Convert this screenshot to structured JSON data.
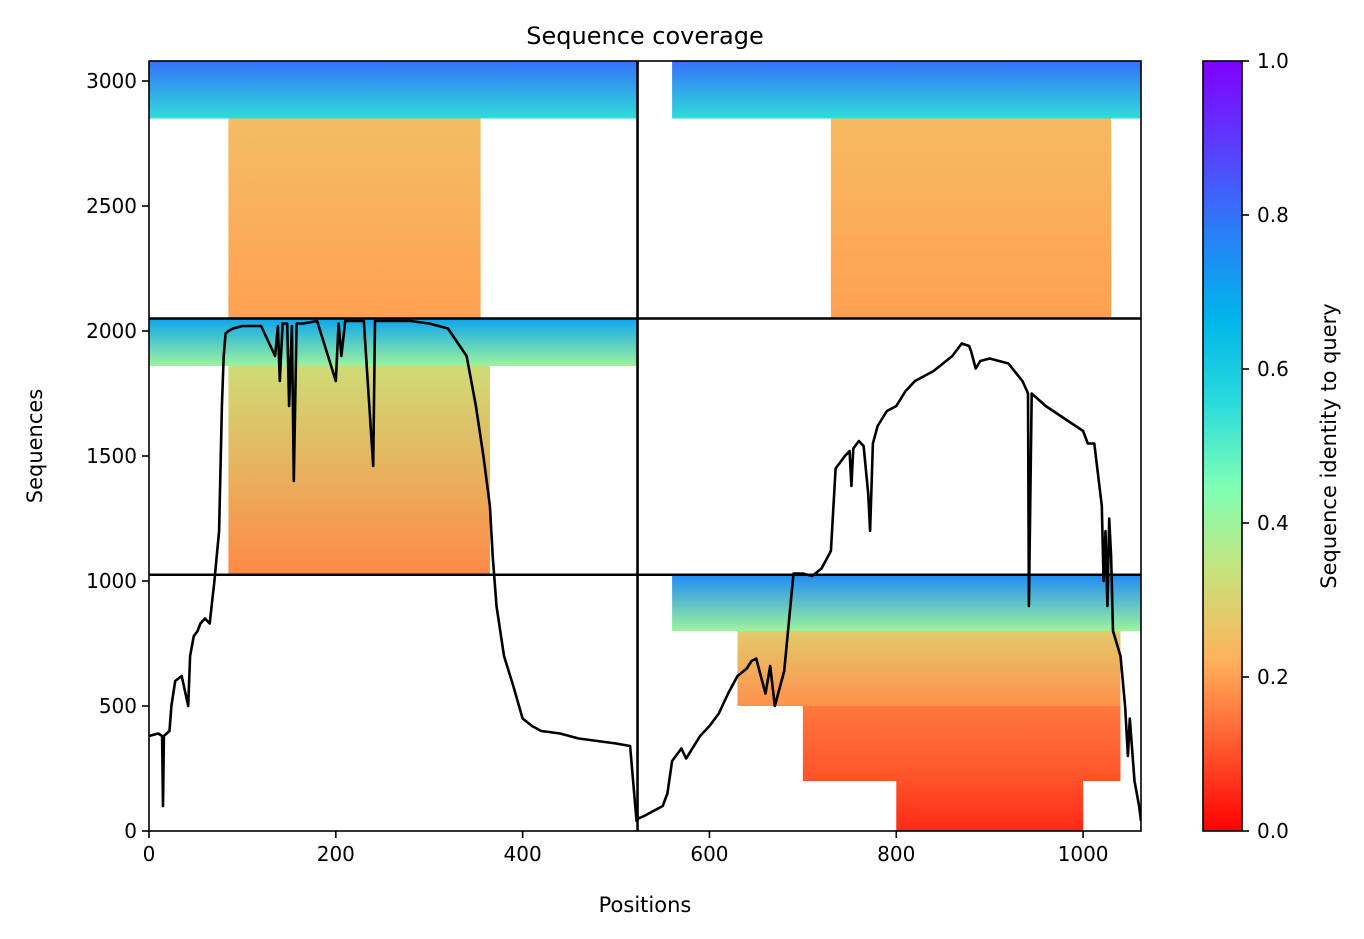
{
  "chart_data": {
    "type": "heatmap",
    "title": "Sequence coverage",
    "xlabel": "Positions",
    "ylabel": "Sequences",
    "xlim": [
      0,
      1062
    ],
    "ylim": [
      0,
      3080
    ],
    "xticks": [
      0,
      200,
      400,
      600,
      800,
      1000
    ],
    "yticks": [
      0,
      500,
      1000,
      1500,
      2000,
      2500,
      3000
    ],
    "segment_boundaries": {
      "x": [
        523
      ],
      "y": [
        1025,
        2050
      ]
    },
    "colorbar": {
      "label": "Sequence identity to query",
      "range": [
        0.0,
        1.0
      ],
      "ticks": [
        "0.0",
        "0.2",
        "0.4",
        "0.6",
        "0.8",
        "1.0"
      ],
      "colormap": "rainbow_r",
      "stops": [
        "#ff0000",
        "#ff5a2e",
        "#ffb25c",
        "#c9e17a",
        "#80ffb4",
        "#2adbdc",
        "#00b5eb",
        "#2a7ef8",
        "#5a3dfc",
        "#8000ff"
      ]
    },
    "coverage_blocks": [
      {
        "x": [
          0,
          523
        ],
        "y": [
          2850,
          3080
        ],
        "identity": [
          0.55,
          0.8
        ]
      },
      {
        "x": [
          85,
          355
        ],
        "y": [
          2050,
          2850
        ],
        "identity": [
          0.2,
          0.25
        ]
      },
      {
        "x": [
          0,
          523
        ],
        "y": [
          1860,
          2050
        ],
        "identity": [
          0.4,
          0.7
        ]
      },
      {
        "x": [
          85,
          365
        ],
        "y": [
          1025,
          1860
        ],
        "identity": [
          0.17,
          0.32
        ]
      },
      {
        "x": [
          560,
          1062
        ],
        "y": [
          2850,
          3080
        ],
        "identity": [
          0.55,
          0.8
        ]
      },
      {
        "x": [
          730,
          1030
        ],
        "y": [
          2050,
          2850
        ],
        "identity": [
          0.2,
          0.24
        ]
      },
      {
        "x": [
          560,
          1062
        ],
        "y": [
          800,
          1025
        ],
        "identity": [
          0.4,
          0.75
        ]
      },
      {
        "x": [
          630,
          1040
        ],
        "y": [
          500,
          800
        ],
        "identity": [
          0.18,
          0.28
        ]
      },
      {
        "x": [
          700,
          1040
        ],
        "y": [
          200,
          500
        ],
        "identity": [
          0.1,
          0.15
        ]
      },
      {
        "x": [
          800,
          1000
        ],
        "y": [
          0,
          200
        ],
        "identity": [
          0.05,
          0.1
        ]
      }
    ],
    "coverage_line": {
      "x": [
        0,
        10,
        14,
        15,
        16,
        22,
        24,
        28,
        35,
        42,
        44,
        48,
        52,
        55,
        60,
        65,
        70,
        75,
        78,
        80,
        82,
        85,
        90,
        100,
        120,
        135,
        138,
        140,
        143,
        148,
        150,
        153,
        155,
        158,
        165,
        180,
        200,
        203,
        206,
        210,
        220,
        230,
        240,
        242,
        244,
        250,
        280,
        300,
        320,
        340,
        350,
        358,
        365,
        368,
        372,
        380,
        390,
        400,
        410,
        420,
        440,
        460,
        480,
        500,
        515,
        521,
        522,
        523,
        524,
        530,
        540,
        550,
        555,
        560,
        570,
        575,
        580,
        590,
        600,
        610,
        620,
        630,
        640,
        645,
        650,
        655,
        660,
        665,
        670,
        680,
        690,
        700,
        710,
        720,
        730,
        735,
        745,
        750,
        752,
        754,
        760,
        765,
        770,
        772,
        775,
        780,
        790,
        800,
        810,
        820,
        830,
        840,
        850,
        860,
        870,
        878,
        880,
        885,
        890,
        900,
        920,
        935,
        940,
        941,
        942,
        945,
        960,
        980,
        1000,
        1005,
        1012,
        1020,
        1022,
        1024,
        1026,
        1028,
        1030,
        1032,
        1040,
        1045,
        1048,
        1050,
        1055,
        1060,
        1062
      ],
      "y": [
        380,
        390,
        380,
        100,
        380,
        400,
        500,
        600,
        620,
        500,
        700,
        780,
        800,
        830,
        850,
        830,
        1000,
        1200,
        1700,
        1900,
        1990,
        2000,
        2010,
        2020,
        2020,
        1900,
        2020,
        1800,
        2030,
        2030,
        1700,
        2020,
        1400,
        2030,
        2030,
        2040,
        1800,
        2030,
        1900,
        2040,
        2040,
        2040,
        1460,
        2040,
        2040,
        2040,
        2040,
        2030,
        2010,
        1900,
        1700,
        1500,
        1300,
        1100,
        900,
        700,
        580,
        450,
        420,
        400,
        390,
        370,
        360,
        350,
        340,
        80,
        40,
        60,
        50,
        60,
        80,
        100,
        150,
        280,
        330,
        290,
        320,
        380,
        420,
        470,
        550,
        620,
        650,
        680,
        690,
        620,
        550,
        660,
        500,
        640,
        1030,
        1030,
        1020,
        1050,
        1120,
        1450,
        1500,
        1520,
        1380,
        1530,
        1560,
        1540,
        1350,
        1200,
        1550,
        1620,
        1680,
        1700,
        1760,
        1800,
        1820,
        1840,
        1870,
        1900,
        1950,
        1940,
        1920,
        1850,
        1880,
        1890,
        1870,
        1800,
        1760,
        1750,
        900,
        1750,
        1700,
        1650,
        1600,
        1550,
        1550,
        1300,
        1000,
        1200,
        900,
        1250,
        1100,
        800,
        700,
        500,
        300,
        450,
        200,
        100,
        40
      ]
    }
  }
}
